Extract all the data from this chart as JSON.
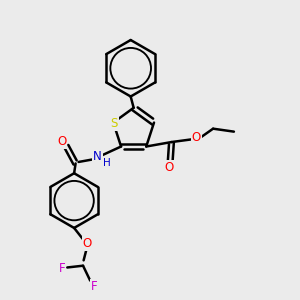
{
  "bg_color": "#ebebeb",
  "bond_color": "#000000",
  "bond_width": 1.8,
  "atom_colors": {
    "S": "#cccc00",
    "N": "#0000cc",
    "O": "#ff0000",
    "F": "#cc00cc",
    "H": "#0000cc",
    "C": "#000000"
  },
  "figsize": [
    3.0,
    3.0
  ],
  "dpi": 100
}
